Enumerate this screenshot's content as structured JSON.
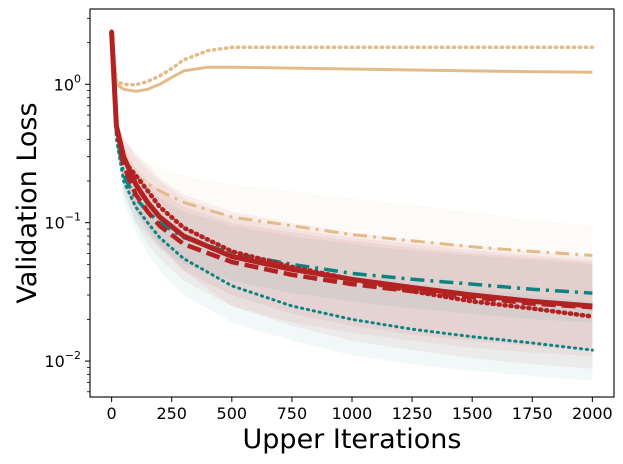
{
  "chart_data": {
    "type": "line",
    "title": "",
    "xlabel": "Upper Iterations",
    "ylabel": "Validation Loss",
    "yscale": "log",
    "xlim": [
      -90,
      2090
    ],
    "ylim": [
      0.0055,
      3.5
    ],
    "xticks": [
      0,
      250,
      500,
      750,
      1000,
      1250,
      1500,
      1750,
      2000
    ],
    "xtick_labels": [
      "0",
      "250",
      "500",
      "750",
      "1000",
      "1250",
      "1500",
      "1750",
      "2000"
    ],
    "yticks": [
      {
        "value": 1,
        "base": "10",
        "exp": "0"
      },
      {
        "value": 0.1,
        "base": "10",
        "exp": "−1"
      },
      {
        "value": 0.01,
        "base": "10",
        "exp": "−2"
      }
    ],
    "series": [
      {
        "name": "tan-dotted",
        "color": "#e3bb88",
        "dash": "dotted",
        "width": 3.5,
        "x": [
          0,
          20,
          50,
          100,
          150,
          200,
          250,
          300,
          400,
          500,
          750,
          1000,
          1500,
          2000
        ],
        "y": [
          2.4,
          1.05,
          1.0,
          0.99,
          1.05,
          1.15,
          1.3,
          1.5,
          1.75,
          1.85,
          1.85,
          1.85,
          1.85,
          1.85
        ]
      },
      {
        "name": "tan-solid",
        "color": "#e3bb88",
        "dash": "solid",
        "width": 3,
        "x": [
          0,
          20,
          50,
          100,
          150,
          200,
          250,
          300,
          400,
          500,
          750,
          1000,
          1500,
          2000
        ],
        "y": [
          2.4,
          1.0,
          0.92,
          0.89,
          0.92,
          1.0,
          1.12,
          1.25,
          1.33,
          1.33,
          1.31,
          1.29,
          1.25,
          1.22
        ]
      },
      {
        "name": "tan-dashdot",
        "color": "#e3bb88",
        "dash": "dashdot",
        "width": 3,
        "x": [
          0,
          20,
          50,
          100,
          150,
          200,
          300,
          500,
          750,
          1000,
          1250,
          1500,
          1750,
          2000
        ],
        "y": [
          2.4,
          0.5,
          0.28,
          0.22,
          0.19,
          0.17,
          0.14,
          0.11,
          0.095,
          0.082,
          0.074,
          0.067,
          0.062,
          0.058
        ],
        "band": [
          [
            2.4,
            2.4
          ],
          [
            0.45,
            0.6
          ],
          [
            0.22,
            0.36
          ],
          [
            0.16,
            0.3
          ],
          [
            0.13,
            0.27
          ],
          [
            0.11,
            0.25
          ],
          [
            0.085,
            0.22
          ],
          [
            0.06,
            0.19
          ],
          [
            0.05,
            0.17
          ],
          [
            0.042,
            0.15
          ],
          [
            0.037,
            0.135
          ],
          [
            0.033,
            0.12
          ],
          [
            0.03,
            0.105
          ],
          [
            0.028,
            0.095
          ]
        ]
      },
      {
        "name": "teal-dotted",
        "color": "#0e8282",
        "dash": "dotted",
        "width": 3,
        "x": [
          0,
          20,
          50,
          100,
          150,
          200,
          300,
          500,
          750,
          1000,
          1250,
          1500,
          1750,
          2000
        ],
        "y": [
          2.4,
          0.4,
          0.2,
          0.13,
          0.1,
          0.078,
          0.055,
          0.035,
          0.025,
          0.02,
          0.017,
          0.015,
          0.0135,
          0.012
        ],
        "band": [
          [
            2.4,
            2.4
          ],
          [
            0.35,
            0.45
          ],
          [
            0.14,
            0.25
          ],
          [
            0.085,
            0.18
          ],
          [
            0.06,
            0.15
          ],
          [
            0.045,
            0.12
          ],
          [
            0.03,
            0.09
          ],
          [
            0.019,
            0.064
          ],
          [
            0.014,
            0.05
          ],
          [
            0.011,
            0.042
          ],
          [
            0.0095,
            0.037
          ],
          [
            0.0085,
            0.033
          ],
          [
            0.0078,
            0.03
          ],
          [
            0.0072,
            0.027
          ]
        ]
      },
      {
        "name": "teal-dashdot",
        "color": "#0e8282",
        "dash": "dashdot",
        "width": 3.5,
        "x": [
          0,
          20,
          50,
          100,
          150,
          200,
          300,
          500,
          750,
          1000,
          1250,
          1500,
          1750,
          2000
        ],
        "y": [
          2.4,
          0.45,
          0.22,
          0.15,
          0.12,
          0.1,
          0.078,
          0.06,
          0.05,
          0.043,
          0.039,
          0.036,
          0.033,
          0.031
        ],
        "band": [
          [
            2.4,
            2.4
          ],
          [
            0.4,
            0.5
          ],
          [
            0.16,
            0.3
          ],
          [
            0.1,
            0.22
          ],
          [
            0.08,
            0.18
          ],
          [
            0.066,
            0.15
          ],
          [
            0.05,
            0.12
          ],
          [
            0.038,
            0.095
          ],
          [
            0.031,
            0.08
          ],
          [
            0.027,
            0.07
          ],
          [
            0.024,
            0.063
          ],
          [
            0.022,
            0.058
          ],
          [
            0.02,
            0.054
          ],
          [
            0.019,
            0.05
          ]
        ]
      },
      {
        "name": "red-dotted",
        "color": "#b22222",
        "dash": "dotted",
        "width": 4.5,
        "x": [
          0,
          20,
          50,
          100,
          150,
          200,
          300,
          500,
          750,
          1000,
          1250,
          1500,
          1750,
          2000
        ],
        "y": [
          2.4,
          0.5,
          0.28,
          0.22,
          0.17,
          0.13,
          0.092,
          0.062,
          0.048,
          0.039,
          0.032,
          0.027,
          0.024,
          0.021
        ],
        "band": [
          [
            2.4,
            2.4
          ],
          [
            0.45,
            0.55
          ],
          [
            0.18,
            0.4
          ],
          [
            0.12,
            0.32
          ],
          [
            0.09,
            0.26
          ],
          [
            0.07,
            0.21
          ],
          [
            0.045,
            0.16
          ],
          [
            0.025,
            0.12
          ],
          [
            0.018,
            0.1
          ],
          [
            0.014,
            0.085
          ],
          [
            0.012,
            0.075
          ],
          [
            0.0105,
            0.068
          ],
          [
            0.0095,
            0.062
          ],
          [
            0.0088,
            0.057
          ]
        ]
      },
      {
        "name": "red-dashed",
        "color": "#b22222",
        "dash": "dashed",
        "width": 4.5,
        "x": [
          0,
          20,
          50,
          100,
          150,
          200,
          300,
          500,
          750,
          1000,
          1250,
          1500,
          1750,
          2000
        ],
        "y": [
          2.4,
          0.5,
          0.26,
          0.16,
          0.12,
          0.095,
          0.07,
          0.052,
          0.042,
          0.036,
          0.032,
          0.029,
          0.026,
          0.0245
        ],
        "band": [
          [
            2.4,
            2.4
          ],
          [
            0.45,
            0.55
          ],
          [
            0.17,
            0.36
          ],
          [
            0.1,
            0.25
          ],
          [
            0.07,
            0.2
          ],
          [
            0.055,
            0.17
          ],
          [
            0.038,
            0.13
          ],
          [
            0.025,
            0.1
          ],
          [
            0.019,
            0.085
          ],
          [
            0.016,
            0.074
          ],
          [
            0.014,
            0.066
          ],
          [
            0.0125,
            0.06
          ],
          [
            0.0115,
            0.056
          ],
          [
            0.0108,
            0.052
          ]
        ]
      },
      {
        "name": "red-solid",
        "color": "#b22222",
        "dash": "solid",
        "width": 5,
        "x": [
          0,
          20,
          50,
          100,
          150,
          200,
          300,
          500,
          750,
          1000,
          1250,
          1500,
          1750,
          2000
        ],
        "y": [
          2.4,
          0.5,
          0.3,
          0.19,
          0.14,
          0.11,
          0.08,
          0.057,
          0.046,
          0.039,
          0.034,
          0.03,
          0.027,
          0.025
        ],
        "band": [
          [
            2.4,
            2.4
          ],
          [
            0.45,
            0.55
          ],
          [
            0.2,
            0.42
          ],
          [
            0.12,
            0.3
          ],
          [
            0.085,
            0.24
          ],
          [
            0.065,
            0.2
          ],
          [
            0.045,
            0.15
          ],
          [
            0.03,
            0.11
          ],
          [
            0.022,
            0.09
          ],
          [
            0.018,
            0.078
          ],
          [
            0.0155,
            0.07
          ],
          [
            0.014,
            0.063
          ],
          [
            0.0128,
            0.058
          ],
          [
            0.012,
            0.054
          ]
        ]
      }
    ]
  }
}
